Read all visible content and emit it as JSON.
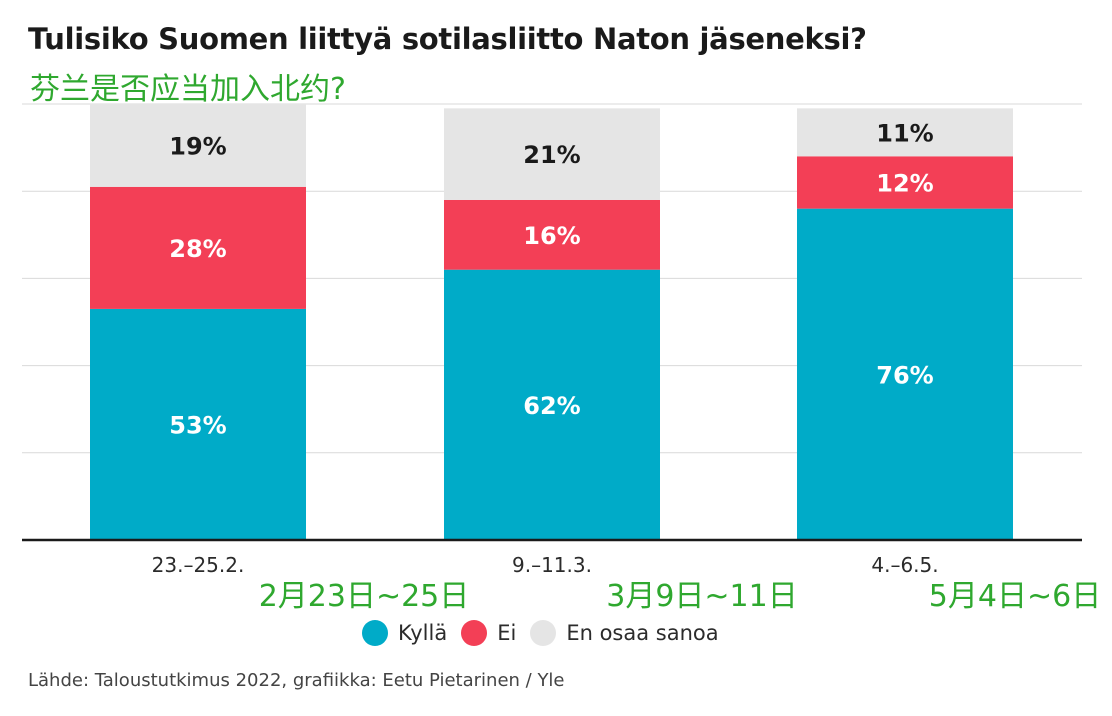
{
  "title": "Tulisiko Suomen liittyä sotilasliitto Naton jäseneksi?",
  "subtitle_cn": "芬兰是否应当加入北约?",
  "source": "Lähde: Taloustutkimus 2022, grafiikka: Eetu Pietarinen / Yle",
  "colors": {
    "kylla": "#00abc8",
    "ei": "#f33f56",
    "eos": "#e5e5e5",
    "annotation": "#2fa82f",
    "grid": "#d9d9d9",
    "axis": "#1a1a1a"
  },
  "legend": [
    {
      "label": "Kyllä",
      "color": "#00abc8"
    },
    {
      "label": "Ei",
      "color": "#f33f56"
    },
    {
      "label": "En osaa sanoa",
      "color": "#e5e5e5"
    }
  ],
  "chart_data": {
    "type": "bar",
    "stacked": true,
    "title": "Tulisiko Suomen liittyä sotilasliitto Naton jäseneksi?",
    "categories": [
      "23.–25.2.",
      "9.–11.3.",
      "4.–6.5."
    ],
    "category_annotations_cn": [
      "2月23日~25日",
      "3月9日~11日",
      "5月4日~6日"
    ],
    "series": [
      {
        "name": "Kyllä",
        "values": [
          53,
          62,
          76
        ],
        "labels": [
          "53%",
          "62%",
          "76%"
        ]
      },
      {
        "name": "Ei",
        "values": [
          28,
          16,
          12
        ],
        "labels": [
          "28%",
          "16%",
          "12%"
        ]
      },
      {
        "name": "En osaa sanoa",
        "values": [
          19,
          21,
          11
        ],
        "labels": [
          "19%",
          "21%",
          "11%"
        ]
      }
    ],
    "ylim": [
      0,
      100
    ],
    "grid": true,
    "legend_position": "bottom"
  }
}
